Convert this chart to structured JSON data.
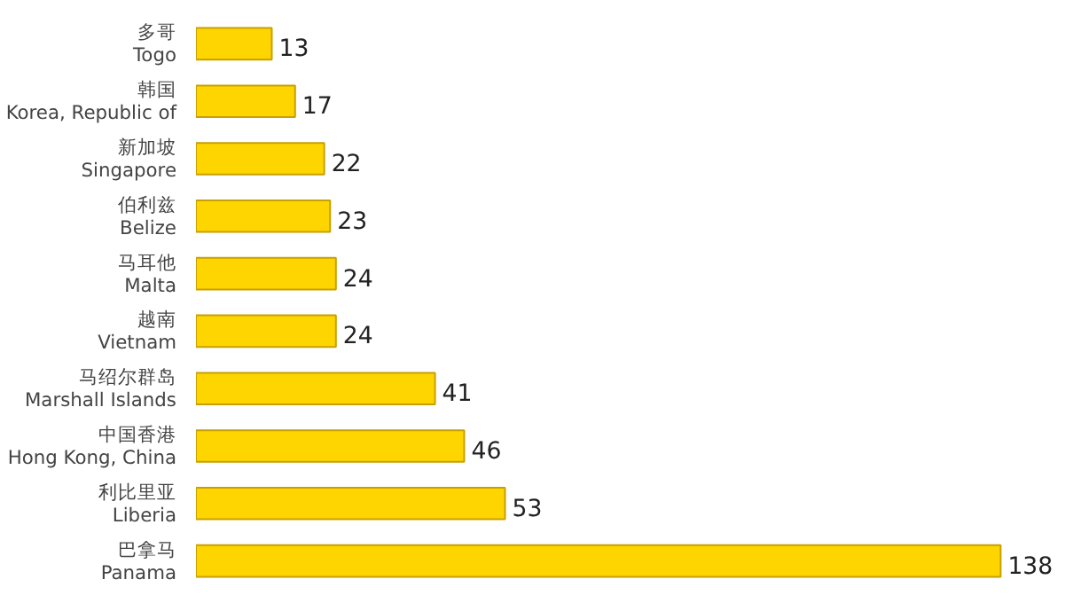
{
  "chart_data": {
    "type": "bar",
    "orientation": "horizontal",
    "categories": [
      "多哥\nTogo",
      "韩国\nKorea, Republic of",
      "新加坡\nSingapore",
      "伯利兹\nBelize",
      "马耳他\nMalta",
      "越南\nVietnam",
      "马绍尔群岛\nMarshall Islands",
      "中国香港\nHong Kong, China",
      "利比里亚\nLiberia",
      "巴拿马\nPanama"
    ],
    "values": [
      13,
      17,
      22,
      23,
      24,
      24,
      41,
      46,
      53,
      138
    ],
    "color": "#ffd500",
    "data_labels": true,
    "grid": false
  }
}
